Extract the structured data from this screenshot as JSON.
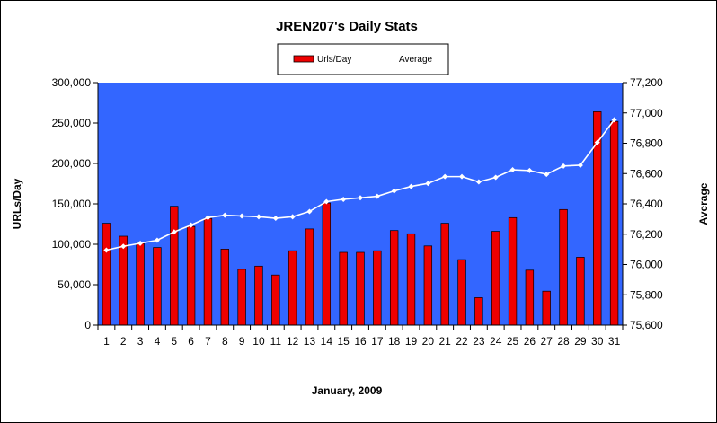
{
  "chart_data": {
    "type": "bar",
    "title": "JREN207's Daily Stats",
    "xlabel": "January, 2009",
    "ylabel": "URLs/Day",
    "y2label": "Average",
    "categories": [
      "1",
      "2",
      "3",
      "4",
      "5",
      "6",
      "7",
      "8",
      "9",
      "10",
      "11",
      "12",
      "13",
      "14",
      "15",
      "16",
      "17",
      "18",
      "19",
      "20",
      "21",
      "22",
      "23",
      "24",
      "25",
      "26",
      "27",
      "28",
      "29",
      "30",
      "31"
    ],
    "ylim": [
      0,
      300000
    ],
    "y2lim": [
      75600,
      77200
    ],
    "yticks": [
      "0",
      "50,000",
      "100,000",
      "150,000",
      "200,000",
      "250,000",
      "300,000"
    ],
    "y2ticks": [
      "75,600",
      "75,800",
      "76,000",
      "76,200",
      "76,400",
      "76,600",
      "76,800",
      "77,000",
      "77,200"
    ],
    "legend_position": "top-center",
    "grid": false,
    "colors": {
      "plot_background": "#3366ff",
      "bar": "#ee0000",
      "line": "#ffffff"
    },
    "series": [
      {
        "name": "Urls/Day",
        "type": "bar",
        "axis": "left",
        "values": [
          126000,
          110000,
          101000,
          96000,
          147000,
          122000,
          132000,
          94000,
          69000,
          73000,
          62000,
          92000,
          119000,
          151000,
          90000,
          90000,
          92000,
          117000,
          113000,
          98000,
          126000,
          81000,
          34000,
          116000,
          133000,
          68000,
          42000,
          143000,
          84000,
          264000,
          252000
        ]
      },
      {
        "name": "Average",
        "type": "line",
        "axis": "right",
        "values": [
          76095,
          76120,
          76140,
          76160,
          76215,
          76260,
          76310,
          76325,
          76320,
          76315,
          76305,
          76315,
          76350,
          76415,
          76430,
          76440,
          76450,
          76485,
          76515,
          76535,
          76580,
          76580,
          76545,
          76575,
          76625,
          76620,
          76595,
          76650,
          76655,
          76805,
          76955
        ]
      }
    ]
  }
}
